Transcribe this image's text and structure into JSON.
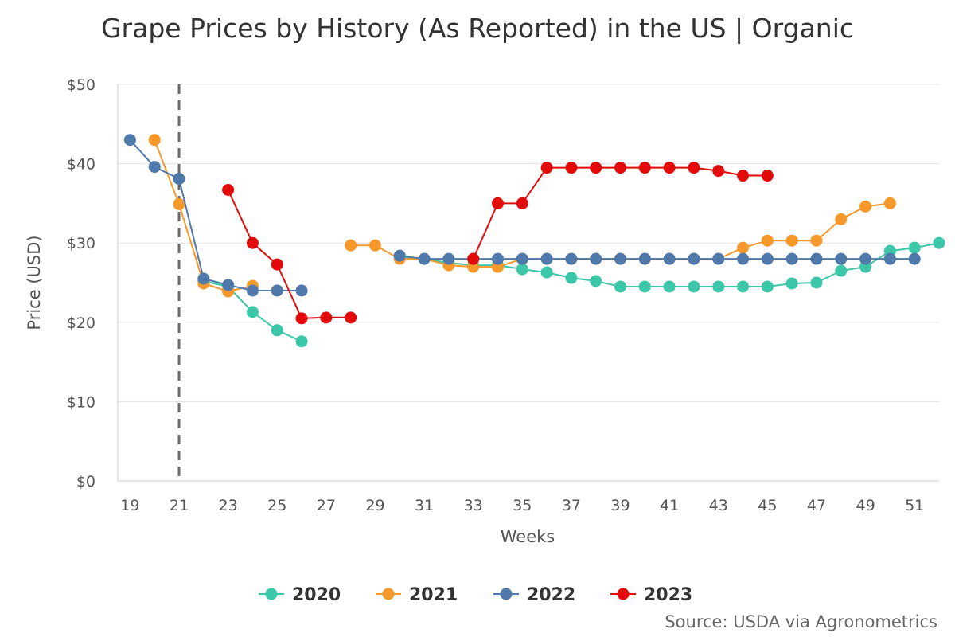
{
  "chart_data": {
    "type": "line",
    "title": "Grape Prices by History (As Reported) in the US | Organic",
    "xlabel": "Weeks",
    "ylabel": "Price (USD)",
    "xlim": [
      18.5,
      52
    ],
    "ylim": [
      0,
      50
    ],
    "x_ticks": [
      19,
      21,
      23,
      25,
      27,
      29,
      31,
      33,
      35,
      37,
      39,
      41,
      43,
      45,
      47,
      49,
      51
    ],
    "y_ticks": [
      0,
      10,
      20,
      30,
      40,
      50
    ],
    "y_tick_labels": [
      "$0",
      "$10",
      "$20",
      "$30",
      "$40",
      "$50"
    ],
    "reference_line_x": 21,
    "grid": true,
    "legend_position": "bottom",
    "source": "Source: USDA via Agronometrics",
    "series": [
      {
        "name": "2020",
        "color": "#3cc8a8",
        "segments": [
          [
            [
              22,
              25.2
            ],
            [
              23,
              24.5
            ],
            [
              24,
              21.3
            ],
            [
              25,
              19.0
            ],
            [
              26,
              17.6
            ]
          ],
          [
            [
              30,
              28.2
            ],
            [
              31,
              28.0
            ],
            [
              32,
              27.5
            ],
            [
              33,
              27.2
            ],
            [
              34,
              27.2
            ],
            [
              35,
              26.7
            ],
            [
              36,
              26.3
            ],
            [
              37,
              25.6
            ],
            [
              38,
              25.2
            ],
            [
              39,
              24.5
            ],
            [
              40,
              24.5
            ],
            [
              41,
              24.5
            ],
            [
              42,
              24.5
            ],
            [
              43,
              24.5
            ],
            [
              44,
              24.5
            ],
            [
              45,
              24.5
            ],
            [
              46,
              24.9
            ],
            [
              47,
              25.0
            ],
            [
              48,
              26.5
            ],
            [
              49,
              27.0
            ],
            [
              50,
              29.0
            ],
            [
              51,
              29.4
            ],
            [
              52,
              30.0
            ]
          ]
        ]
      },
      {
        "name": "2021",
        "color": "#f7982b",
        "segments": [
          [
            [
              20,
              43.0
            ],
            [
              21,
              34.9
            ],
            [
              22,
              24.9
            ],
            [
              23,
              23.9
            ],
            [
              24,
              24.6
            ]
          ],
          [
            [
              28,
              29.7
            ],
            [
              29,
              29.7
            ],
            [
              30,
              28.0
            ],
            [
              31,
              28.0
            ],
            [
              32,
              27.2
            ],
            [
              33,
              27.0
            ],
            [
              34,
              27.0
            ],
            [
              35,
              28.0
            ],
            [
              36,
              28.0
            ],
            [
              37,
              28.0
            ],
            [
              38,
              28.0
            ],
            [
              39,
              28.0
            ],
            [
              40,
              28.0
            ],
            [
              41,
              28.0
            ],
            [
              42,
              28.0
            ],
            [
              43,
              28.0
            ],
            [
              44,
              29.4
            ],
            [
              45,
              30.3
            ],
            [
              46,
              30.3
            ],
            [
              47,
              30.3
            ],
            [
              48,
              33.0
            ],
            [
              49,
              34.6
            ],
            [
              50,
              35.0
            ]
          ]
        ]
      },
      {
        "name": "2022",
        "color": "#4f79aa",
        "segments": [
          [
            [
              19,
              43.0
            ],
            [
              20,
              39.6
            ],
            [
              21,
              38.1
            ],
            [
              22,
              25.5
            ],
            [
              23,
              24.7
            ],
            [
              24,
              24.0
            ],
            [
              25,
              24.0
            ],
            [
              26,
              24.0
            ]
          ],
          [
            [
              30,
              28.4
            ],
            [
              31,
              28.0
            ],
            [
              32,
              28.0
            ],
            [
              33,
              28.0
            ],
            [
              34,
              28.0
            ],
            [
              35,
              28.0
            ],
            [
              36,
              28.0
            ],
            [
              37,
              28.0
            ],
            [
              38,
              28.0
            ],
            [
              39,
              28.0
            ],
            [
              40,
              28.0
            ],
            [
              41,
              28.0
            ],
            [
              42,
              28.0
            ],
            [
              43,
              28.0
            ],
            [
              44,
              28.0
            ],
            [
              45,
              28.0
            ],
            [
              46,
              28.0
            ],
            [
              47,
              28.0
            ],
            [
              48,
              28.0
            ],
            [
              49,
              28.0
            ],
            [
              50,
              28.0
            ],
            [
              51,
              28.0
            ]
          ]
        ]
      },
      {
        "name": "2023",
        "color": "#e30a0a",
        "segments": [
          [
            [
              23,
              36.7
            ],
            [
              24,
              30.0
            ],
            [
              25,
              27.3
            ],
            [
              26,
              20.5
            ],
            [
              27,
              20.6
            ],
            [
              28,
              20.6
            ]
          ],
          [
            [
              33,
              28.0
            ],
            [
              34,
              35.0
            ],
            [
              35,
              35.0
            ],
            [
              36,
              39.5
            ],
            [
              37,
              39.5
            ],
            [
              38,
              39.5
            ],
            [
              39,
              39.5
            ],
            [
              40,
              39.5
            ],
            [
              41,
              39.5
            ],
            [
              42,
              39.5
            ],
            [
              43,
              39.1
            ],
            [
              44,
              38.5
            ],
            [
              45,
              38.5
            ]
          ]
        ]
      }
    ]
  }
}
